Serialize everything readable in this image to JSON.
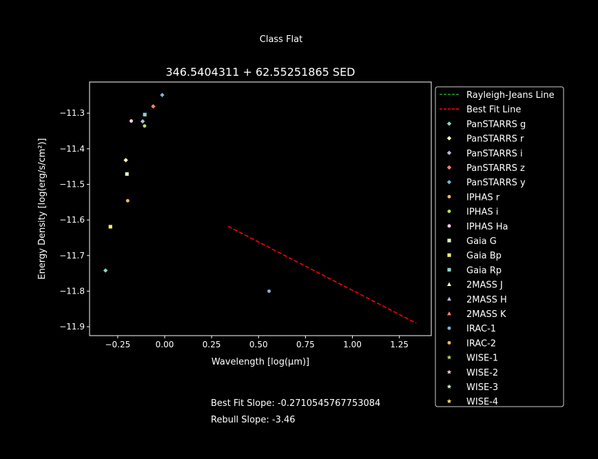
{
  "suptitle": "Class Flat",
  "slopes": {
    "best_fit": "Best Fit Slope: -0.2710545767753084",
    "rebull": "Rebull Slope: -3.46"
  },
  "chart_data": {
    "type": "scatter",
    "title": "346.5404311 + 62.55251865 SED",
    "xlabel": "Wavelength [log(μm)]",
    "ylabel": "Energy Density [log(erg/s/cm²)]",
    "xlim": [
      -0.4,
      1.42
    ],
    "ylim": [
      -11.925,
      -11.2125
    ],
    "xticks": [
      -0.25,
      0.0,
      0.25,
      0.5,
      0.75,
      1.0,
      1.25
    ],
    "xtick_labels": [
      "−0.25",
      "0.00",
      "0.25",
      "0.50",
      "0.75",
      "1.00",
      "1.25"
    ],
    "yticks": [
      -11.3,
      -11.4,
      -11.5,
      -11.6,
      -11.7,
      -11.8,
      -11.9
    ],
    "ytick_labels": [
      "−11.3",
      "−11.4",
      "−11.5",
      "−11.6",
      "−11.7",
      "−11.8",
      "−11.9"
    ],
    "legend_position": "outside-right",
    "grid": false,
    "lines": [
      {
        "name": "Rayleigh-Jeans Line",
        "color": "#2ca02c",
        "style": "dashed",
        "points": []
      },
      {
        "name": "Best Fit Line",
        "color": "#ff0000",
        "style": "dashed",
        "points": [
          [
            0.338,
            -11.618
          ],
          [
            1.34,
            -11.89
          ]
        ]
      }
    ],
    "series": [
      {
        "name": "PanSTARRS g",
        "marker": "diamond",
        "color": "#8dd3c7",
        "points": [
          [
            -0.315,
            -11.742
          ]
        ]
      },
      {
        "name": "PanSTARRS r",
        "marker": "diamond",
        "color": "#ffffb3",
        "points": [
          [
            -0.207,
            -11.432
          ]
        ]
      },
      {
        "name": "PanSTARRS i",
        "marker": "diamond",
        "color": "#bebada",
        "points": [
          [
            -0.117,
            -11.323
          ]
        ]
      },
      {
        "name": "PanSTARRS z",
        "marker": "diamond",
        "color": "#fb8072",
        "points": [
          [
            -0.061,
            -11.281
          ]
        ]
      },
      {
        "name": "PanSTARRS y",
        "marker": "diamond",
        "color": "#80b1d3",
        "points": [
          [
            -0.013,
            -11.249
          ]
        ]
      },
      {
        "name": "IPHAS r",
        "marker": "circle",
        "color": "#fdb462",
        "points": [
          [
            -0.197,
            -11.546
          ]
        ]
      },
      {
        "name": "IPHAS i",
        "marker": "circle",
        "color": "#b3de69",
        "points": [
          [
            -0.107,
            -11.336
          ]
        ]
      },
      {
        "name": "IPHAS Ha",
        "marker": "circle",
        "color": "#fccde5",
        "points": [
          [
            -0.178,
            -11.322
          ]
        ]
      },
      {
        "name": "Gaia G",
        "marker": "square",
        "color": "#d9f5c8",
        "points": [
          [
            -0.201,
            -11.471
          ]
        ]
      },
      {
        "name": "Gaia Bp",
        "marker": "square",
        "color": "#ffed6f",
        "points": [
          [
            -0.289,
            -11.619
          ]
        ]
      },
      {
        "name": "Gaia Rp",
        "marker": "square",
        "color": "#8dd3c7",
        "points": [
          [
            -0.106,
            -11.304
          ]
        ]
      },
      {
        "name": "2MASS J",
        "marker": "triangle",
        "color": "#ffffb3",
        "points": []
      },
      {
        "name": "2MASS H",
        "marker": "triangle",
        "color": "#bebada",
        "points": []
      },
      {
        "name": "2MASS K",
        "marker": "triangle",
        "color": "#fb8072",
        "points": []
      },
      {
        "name": "IRAC-1",
        "marker": "circle",
        "color": "#80b1d3",
        "points": [
          [
            0.556,
            -11.8
          ]
        ]
      },
      {
        "name": "IRAC-2",
        "marker": "circle",
        "color": "#fdb462",
        "points": []
      },
      {
        "name": "WISE-1",
        "marker": "star",
        "color": "#b3de69",
        "points": []
      },
      {
        "name": "WISE-2",
        "marker": "star",
        "color": "#fccde5",
        "points": []
      },
      {
        "name": "WISE-3",
        "marker": "star",
        "color": "#d9f5c8",
        "points": []
      },
      {
        "name": "WISE-4",
        "marker": "star",
        "color": "#ffed6f",
        "points": []
      }
    ]
  }
}
